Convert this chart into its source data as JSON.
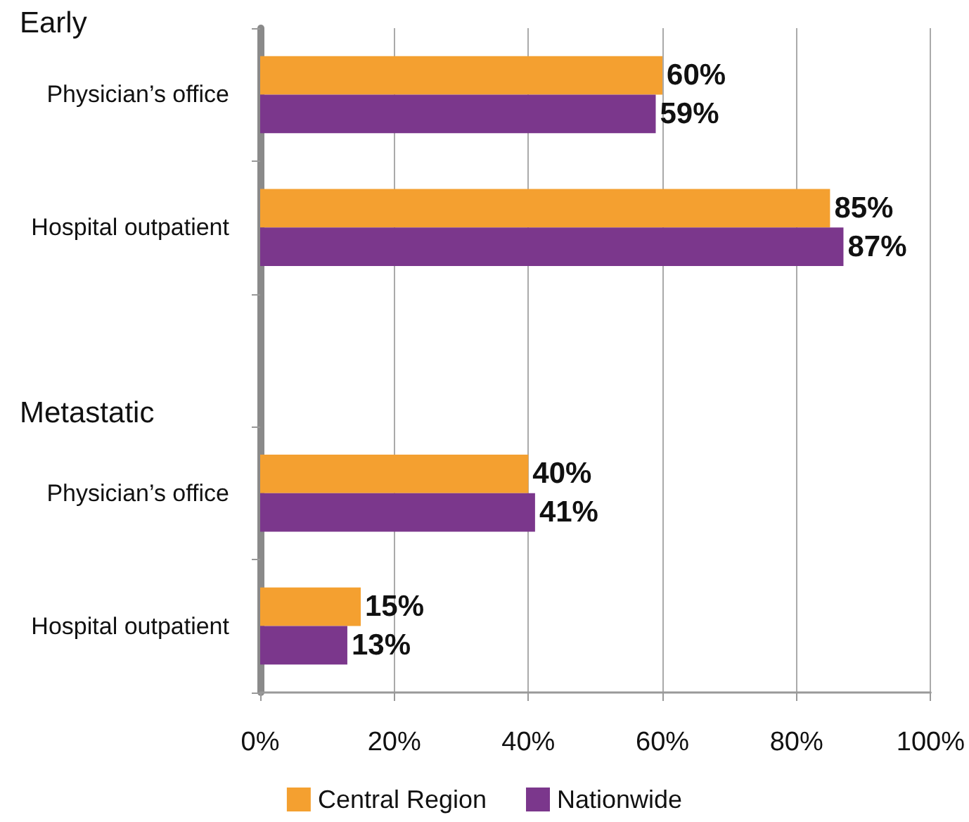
{
  "chart_data": {
    "type": "bar",
    "orientation": "horizontal",
    "categories": [
      "Physician’s office",
      "Hospital outpatient",
      null,
      "Physician’s office",
      "Hospital outpatient"
    ],
    "annotations": [
      "Early",
      "Metastatic"
    ],
    "series": [
      {
        "name": "Central Region",
        "color": "#f4a030",
        "values": [
          60,
          85,
          null,
          40,
          15
        ],
        "value_labels": [
          "60%",
          "85%",
          null,
          "40%",
          "15%"
        ]
      },
      {
        "name": "Nationwide",
        "color": "#7b378c",
        "values": [
          59,
          87,
          null,
          41,
          13
        ],
        "value_labels": [
          "59%",
          "87%",
          null,
          "41%",
          "13%"
        ]
      }
    ],
    "xlim": [
      0,
      100
    ],
    "xticks": [
      {
        "value": 0,
        "label": "0%"
      },
      {
        "value": 20,
        "label": "20%"
      },
      {
        "value": 40,
        "label": "40%"
      },
      {
        "value": 60,
        "label": "60%"
      },
      {
        "value": 80,
        "label": "80%"
      },
      {
        "value": 100,
        "label": "100%"
      }
    ],
    "grid": "x",
    "legend": "bottom"
  }
}
